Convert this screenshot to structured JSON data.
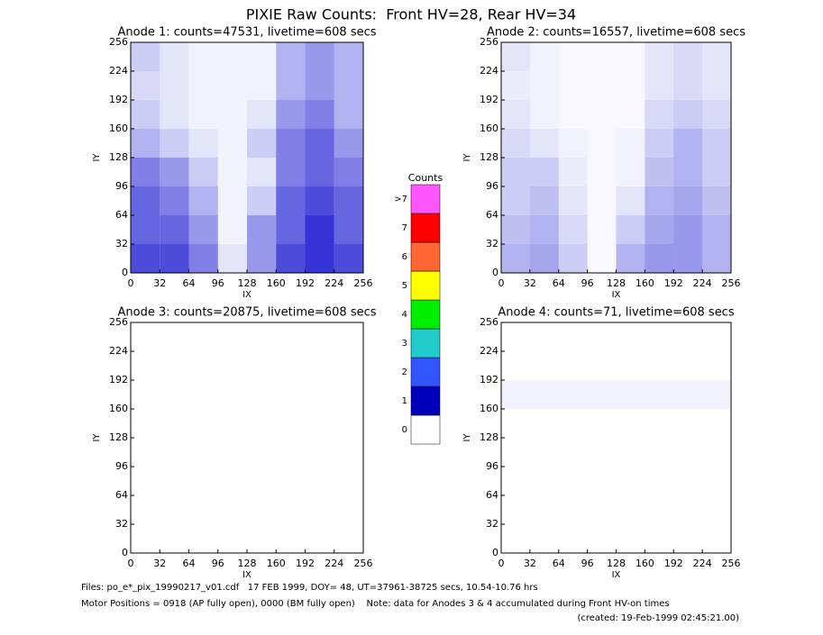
{
  "title": "PIXIE Raw Counts:  Front HV=28, Rear HV=34",
  "colorbar": {
    "title": "Counts",
    "levels": [
      {
        "label": "0",
        "color": "#ffffff"
      },
      {
        "label": "1",
        "color": "#0000bb"
      },
      {
        "label": "2",
        "color": "#3355ff"
      },
      {
        "label": "3",
        "color": "#22cccc"
      },
      {
        "label": "4",
        "color": "#00ee00"
      },
      {
        "label": "5",
        "color": "#ffff00"
      },
      {
        "label": "6",
        "color": "#ff6633"
      },
      {
        "label": "7",
        "color": "#ff0000"
      },
      {
        "label": ">7",
        "color": "#ff55ff"
      }
    ]
  },
  "footer": [
    "Files: po_e*_pix_19990217_v01.cdf   17 FEB 1999, DOY= 48, UT=37961-38725 secs, 10.54-10.76 hrs",
    "Motor Positions = 0918 (AP fully open), 0000 (BM fully open)    Note: data for Anodes 3 & 4 accumulated during Front HV-on times",
    "(created: 19-Feb-1999 02:45:21.00)"
  ],
  "chart_data": [
    {
      "type": "heatmap",
      "title": "Anode 1: counts=47531, livetime=608 secs",
      "xlabel": "IX",
      "ylabel": "IY",
      "color": "#0000cc",
      "xlim": [
        0,
        256
      ],
      "ylim": [
        0,
        256
      ],
      "xticks": [
        0,
        32,
        64,
        96,
        128,
        160,
        192,
        224,
        256
      ],
      "yticks": [
        0,
        32,
        64,
        96,
        128,
        160,
        192,
        224,
        256
      ],
      "z": [
        [
          0.7,
          0.7,
          0.5,
          0.1,
          0.4,
          0.7,
          0.8,
          0.7
        ],
        [
          0.6,
          0.6,
          0.4,
          0.05,
          0.4,
          0.6,
          0.8,
          0.6
        ],
        [
          0.6,
          0.5,
          0.3,
          0.05,
          0.2,
          0.6,
          0.7,
          0.6
        ],
        [
          0.5,
          0.4,
          0.2,
          0.05,
          0.1,
          0.5,
          0.6,
          0.5
        ],
        [
          0.3,
          0.2,
          0.1,
          0.05,
          0.2,
          0.5,
          0.6,
          0.4
        ],
        [
          0.2,
          0.1,
          0.05,
          0.05,
          0.1,
          0.4,
          0.5,
          0.3
        ],
        [
          0.15,
          0.1,
          0.05,
          0.05,
          0.05,
          0.3,
          0.4,
          0.3
        ],
        [
          0.2,
          0.1,
          0.05,
          0.05,
          0.05,
          0.3,
          0.4,
          0.3
        ]
      ]
    },
    {
      "type": "heatmap",
      "title": "Anode 2: counts=16557, livetime=608 secs",
      "xlabel": "IX",
      "ylabel": "IY",
      "color": "#0000cc",
      "xlim": [
        0,
        256
      ],
      "ylim": [
        0,
        256
      ],
      "xticks": [
        0,
        32,
        64,
        96,
        128,
        160,
        192,
        224,
        256
      ],
      "yticks": [
        0,
        32,
        64,
        96,
        128,
        160,
        192,
        224,
        256
      ],
      "z": [
        [
          0.3,
          0.35,
          0.2,
          0.03,
          0.3,
          0.4,
          0.4,
          0.3
        ],
        [
          0.25,
          0.3,
          0.15,
          0.03,
          0.2,
          0.35,
          0.4,
          0.3
        ],
        [
          0.2,
          0.25,
          0.1,
          0.03,
          0.1,
          0.3,
          0.35,
          0.25
        ],
        [
          0.2,
          0.2,
          0.08,
          0.03,
          0.05,
          0.25,
          0.3,
          0.2
        ],
        [
          0.15,
          0.1,
          0.05,
          0.03,
          0.05,
          0.2,
          0.3,
          0.2
        ],
        [
          0.1,
          0.05,
          0.03,
          0.03,
          0.03,
          0.15,
          0.2,
          0.15
        ],
        [
          0.08,
          0.05,
          0.03,
          0.03,
          0.03,
          0.1,
          0.15,
          0.1
        ],
        [
          0.1,
          0.05,
          0.03,
          0.03,
          0.03,
          0.1,
          0.15,
          0.1
        ]
      ]
    },
    {
      "type": "heatmap",
      "title": "Anode 3: counts=20875, livetime=608 secs",
      "xlabel": "IX",
      "ylabel": "IY",
      "color": "#0000cc",
      "xlim": [
        0,
        256
      ],
      "ylim": [
        0,
        256
      ],
      "xticks": [
        0,
        32,
        64,
        96,
        128,
        160,
        192,
        224,
        256
      ],
      "yticks": [
        0,
        32,
        64,
        96,
        128,
        160,
        192,
        224,
        256
      ],
      "z": [
        [
          0,
          0,
          0,
          0,
          0,
          0,
          0,
          0
        ],
        [
          0,
          0,
          0,
          0,
          0,
          0,
          0,
          0
        ],
        [
          0,
          0,
          0,
          0,
          0,
          0,
          0,
          0
        ],
        [
          0,
          0,
          0,
          0,
          0,
          0,
          0,
          0
        ],
        [
          0,
          0,
          0,
          0,
          0,
          0,
          0,
          0
        ],
        [
          0,
          0,
          0,
          0,
          0,
          0,
          0,
          0
        ],
        [
          0,
          0,
          0,
          0,
          0,
          0,
          0,
          0
        ],
        [
          0,
          0,
          0,
          0,
          0,
          0,
          0,
          0
        ]
      ]
    },
    {
      "type": "heatmap",
      "title": "Anode 4: counts=71, livetime=608 secs",
      "xlabel": "IX",
      "ylabel": "IY",
      "color": "#0000cc",
      "xlim": [
        0,
        256
      ],
      "ylim": [
        0,
        256
      ],
      "xticks": [
        0,
        32,
        64,
        96,
        128,
        160,
        192,
        224,
        256
      ],
      "yticks": [
        0,
        32,
        64,
        96,
        128,
        160,
        192,
        224,
        256
      ],
      "z": [
        [
          0,
          0,
          0,
          0,
          0,
          0,
          0,
          0
        ],
        [
          0,
          0,
          0,
          0,
          0,
          0,
          0,
          0
        ],
        [
          0,
          0,
          0,
          0,
          0,
          0,
          0,
          0
        ],
        [
          0,
          0,
          0,
          0,
          0,
          0,
          0,
          0
        ],
        [
          0,
          0,
          0,
          0,
          0,
          0,
          0,
          0
        ],
        [
          0.05,
          0.05,
          0.05,
          0.05,
          0.05,
          0.05,
          0.05,
          0.05
        ],
        [
          0,
          0,
          0,
          0,
          0,
          0,
          0,
          0
        ],
        [
          0,
          0,
          0,
          0,
          0,
          0,
          0,
          0
        ]
      ]
    }
  ]
}
